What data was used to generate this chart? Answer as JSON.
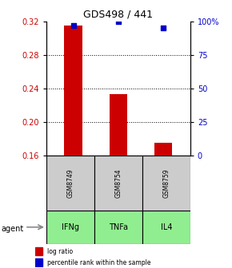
{
  "title": "GDS498 / 441",
  "categories": [
    "IFNg",
    "TNFa",
    "IL4"
  ],
  "gsm_labels": [
    "GSM8749",
    "GSM8754",
    "GSM8759"
  ],
  "log_ratios": [
    0.315,
    0.233,
    0.175
  ],
  "percentile_ranks": [
    97,
    100,
    95
  ],
  "bar_color": "#cc0000",
  "dot_color": "#0000cc",
  "ylim_left": [
    0.16,
    0.32
  ],
  "ylim_right": [
    0,
    100
  ],
  "yticks_left": [
    0.16,
    0.2,
    0.24,
    0.28,
    0.32
  ],
  "yticks_right": [
    0,
    25,
    50,
    75,
    100
  ],
  "ytick_right_labels": [
    "0",
    "25",
    "50",
    "75",
    "100%"
  ],
  "grid_lines": [
    0.2,
    0.24,
    0.28
  ],
  "bar_width": 0.4,
  "gray_box_color": "#cccccc",
  "green_box_color": "#90ee90",
  "agent_label": "agent",
  "legend_log_ratio": "log ratio",
  "legend_percentile": "percentile rank within the sample",
  "title_fontsize": 9,
  "tick_fontsize": 7,
  "label_fontsize": 7,
  "gsm_fontsize": 5.5
}
